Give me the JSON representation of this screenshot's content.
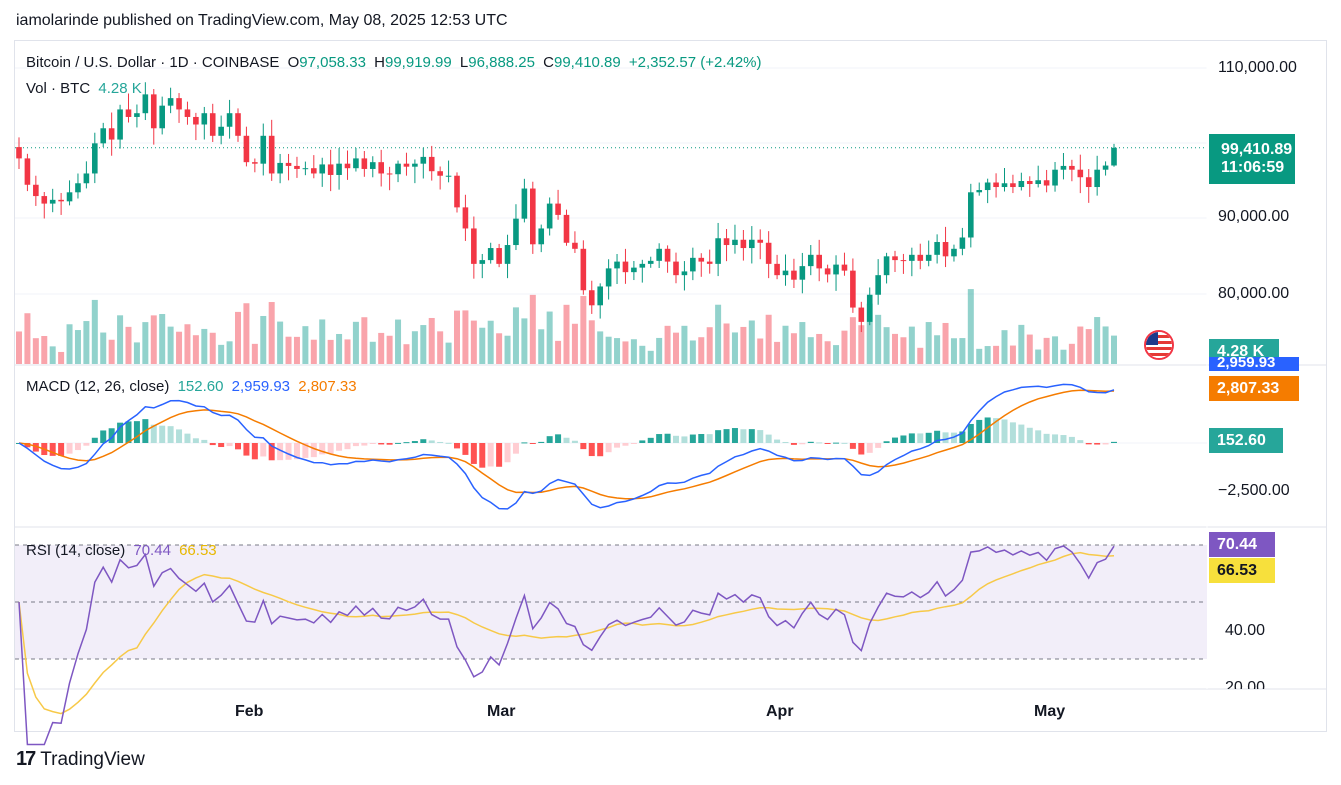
{
  "header": {
    "published": "iamolarinde published on TradingView.com, May 08, 2025 12:53 UTC"
  },
  "legend": {
    "symbol": "Bitcoin / U.S. Dollar · 1D · COINBASE",
    "o_label": "O",
    "o_value": "97,058.33",
    "h_label": "H",
    "h_value": "99,919.99",
    "l_label": "L",
    "l_value": "96,888.25",
    "c_label": "C",
    "c_value": "99,410.89",
    "change": "+2,352.57 (+2.42%)",
    "vol_label": "Vol · BTC",
    "vol_value": "4.28 K"
  },
  "macd_legend": {
    "label": "MACD (12, 26, close)",
    "hist": "152.60",
    "macd": "2,959.93",
    "signal": "2,807.33"
  },
  "rsi_legend": {
    "label": "RSI (14, close)",
    "rsi": "70.44",
    "ma": "66.53"
  },
  "price_axis": [
    "110,000.00",
    "90,000.00",
    "80,000.00"
  ],
  "macd_axis": [
    "−2,500.00"
  ],
  "rsi_axis": [
    "40.00",
    "20.00"
  ],
  "time_axis": [
    "Feb",
    "Mar",
    "Apr",
    "May"
  ],
  "badges": {
    "price": "99,410.89",
    "countdown": "11:06:59",
    "volume": "4.28 K",
    "macd": "2,959.93",
    "signal": "2,807.33",
    "hist": "152.60",
    "rsi": "70.44",
    "rsi_ma": "66.53"
  },
  "footer": {
    "brand": "TradingView",
    "logo": "17"
  },
  "colors": {
    "up": "#089981",
    "down": "#f23645",
    "macd": "#2962ff",
    "signal": "#f57c00",
    "rsi": "#7e57c2",
    "rsi_ma": "#f7c948"
  },
  "chart_data": [
    {
      "type": "candlestick",
      "title": "Bitcoin / U.S. Dollar · 1D · COINBASE",
      "close_series": [
        98000,
        94500,
        93000,
        92000,
        92500,
        92300,
        93500,
        94700,
        96000,
        100000,
        102000,
        100500,
        104500,
        103500,
        104000,
        106500,
        102000,
        105000,
        106000,
        104500,
        103500,
        102500,
        104000,
        101000,
        102200,
        104000,
        101000,
        97500,
        97300,
        101000,
        96000,
        97400,
        97000,
        96600,
        96700,
        96000,
        97200,
        95800,
        97300,
        96700,
        98000,
        96600,
        97500,
        96000,
        95900,
        97300,
        96900,
        97300,
        98200,
        96300,
        95700,
        95700,
        91500,
        88700,
        84000,
        84500,
        86100,
        84000,
        86500,
        90000,
        94000,
        86600,
        88700,
        92000,
        90500,
        86800,
        86000,
        80500,
        78500,
        81000,
        83400,
        84300,
        82900,
        83500,
        84000,
        84400,
        86000,
        84300,
        82500,
        83000,
        84800,
        84300,
        84000,
        87400,
        86500,
        87200,
        86100,
        87200,
        86800,
        84000,
        82500,
        83100,
        81900,
        83700,
        85200,
        83400,
        82600,
        83900,
        83100,
        78200,
        76300,
        79900,
        82500,
        85000,
        84500,
        84400,
        85200,
        84400,
        85200,
        86900,
        85000,
        86000,
        87500,
        93500,
        93800,
        94800,
        94200,
        94700,
        94200,
        95000,
        94600,
        95100,
        94400,
        96500,
        97000,
        96500,
        95500,
        94200,
        96500,
        97050,
        99411
      ],
      "last_close": 99410.89,
      "ohlc_last": {
        "open": 97058.33,
        "high": 99919.99,
        "low": 96888.25,
        "close": 99410.89
      },
      "ylim": [
        76000,
        112000
      ],
      "x_labels": [
        "Feb",
        "Mar",
        "Apr",
        "May"
      ]
    },
    {
      "type": "line",
      "title": "MACD (12, 26, close)",
      "series": [
        {
          "name": "MACD",
          "last": 2959.93
        },
        {
          "name": "Signal",
          "last": 2807.33
        },
        {
          "name": "Histogram",
          "last": 152.6
        }
      ]
    },
    {
      "type": "line",
      "title": "RSI (14, close)",
      "series": [
        {
          "name": "RSI",
          "last": 70.44
        },
        {
          "name": "RSI MA",
          "last": 66.53
        }
      ],
      "bands": [
        70,
        50,
        30
      ]
    }
  ]
}
